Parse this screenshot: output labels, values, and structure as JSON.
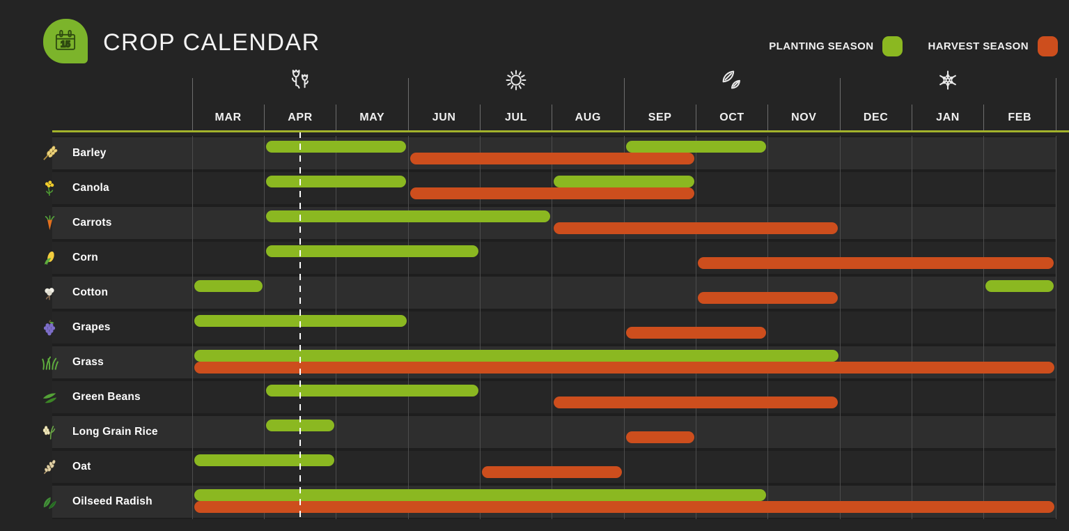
{
  "header": {
    "title": "CROP CALENDAR",
    "logo_day": "15",
    "logo_color": "#7cb42b"
  },
  "legend": {
    "planting_label": "PLANTING SEASON",
    "harvest_label": "HARVEST SEASON",
    "planting_color": "#8bb821",
    "harvest_color": "#cd4e1d"
  },
  "today_marker": {
    "month": "APR",
    "fraction": 0.5,
    "label": "mid-April (the 15th)"
  },
  "seasons": [
    {
      "name": "spring",
      "icon": "flower-icon",
      "center_month": "APR"
    },
    {
      "name": "summer",
      "icon": "sun-icon",
      "center_month": "JUL"
    },
    {
      "name": "autumn",
      "icon": "leaves-icon",
      "center_month": "OCT"
    },
    {
      "name": "winter",
      "icon": "snowflake-icon",
      "center_month": "JAN"
    }
  ],
  "chart_data": {
    "type": "gantt",
    "title": "CROP CALENDAR",
    "x_axis": {
      "unit": "month",
      "categories": [
        "MAR",
        "APR",
        "MAY",
        "JUN",
        "JUL",
        "AUG",
        "SEP",
        "OCT",
        "NOV",
        "DEC",
        "JAN",
        "FEB"
      ],
      "season_groups": [
        [
          "MAR",
          "MAY"
        ],
        [
          "JUN",
          "AUG"
        ],
        [
          "SEP",
          "NOV"
        ],
        [
          "DEC",
          "FEB"
        ]
      ]
    },
    "legend_entries": [
      "PLANTING SEASON",
      "HARVEST SEASON"
    ],
    "rows": [
      {
        "crop": "Barley",
        "icon": "barley-icon",
        "icon_type": "wheat",
        "planting": [
          [
            "APR",
            "MAY"
          ],
          [
            "SEP",
            "OCT"
          ]
        ],
        "harvest": [
          [
            "JUN",
            "SEP"
          ]
        ]
      },
      {
        "crop": "Canola",
        "icon": "canola-icon",
        "icon_type": "canola",
        "planting": [
          [
            "APR",
            "MAY"
          ],
          [
            "AUG",
            "SEP"
          ]
        ],
        "harvest": [
          [
            "JUN",
            "SEP"
          ]
        ]
      },
      {
        "crop": "Carrots",
        "icon": "carrot-icon",
        "icon_type": "carrot",
        "planting": [
          [
            "APR",
            "JUL"
          ]
        ],
        "harvest": [
          [
            "AUG",
            "NOV"
          ]
        ]
      },
      {
        "crop": "Corn",
        "icon": "corn-icon",
        "icon_type": "corn",
        "planting": [
          [
            "APR",
            "JUN"
          ]
        ],
        "harvest": [
          [
            "OCT",
            "FEB"
          ]
        ]
      },
      {
        "crop": "Cotton",
        "icon": "cotton-icon",
        "icon_type": "cotton",
        "planting": [
          [
            "MAR",
            "MAR"
          ],
          [
            "FEB",
            "FEB"
          ]
        ],
        "harvest": [
          [
            "OCT",
            "NOV"
          ]
        ]
      },
      {
        "crop": "Grapes",
        "icon": "grapes-icon",
        "icon_type": "grapes",
        "planting": [
          [
            "MAR",
            "MAY"
          ]
        ],
        "harvest": [
          [
            "SEP",
            "OCT"
          ]
        ]
      },
      {
        "crop": "Grass",
        "icon": "grass-icon",
        "icon_type": "grass",
        "planting": [
          [
            "MAR",
            "NOV"
          ]
        ],
        "harvest": [
          [
            "MAR",
            "FEB"
          ]
        ]
      },
      {
        "crop": "Green Beans",
        "icon": "green-beans-icon",
        "icon_type": "beans",
        "planting": [
          [
            "APR",
            "JUN"
          ]
        ],
        "harvest": [
          [
            "AUG",
            "NOV"
          ]
        ]
      },
      {
        "crop": "Long Grain Rice",
        "icon": "rice-icon",
        "icon_type": "rice",
        "planting": [
          [
            "APR",
            "APR"
          ]
        ],
        "harvest": [
          [
            "SEP",
            "SEP"
          ]
        ]
      },
      {
        "crop": "Oat",
        "icon": "oat-icon",
        "icon_type": "oat",
        "planting": [
          [
            "MAR",
            "APR"
          ]
        ],
        "harvest": [
          [
            "JUL",
            "AUG"
          ]
        ]
      },
      {
        "crop": "Oilseed Radish",
        "icon": "radish-icon",
        "icon_type": "radish",
        "planting": [
          [
            "MAR",
            "OCT"
          ]
        ],
        "harvest": [
          [
            "MAR",
            "FEB"
          ]
        ]
      }
    ]
  }
}
